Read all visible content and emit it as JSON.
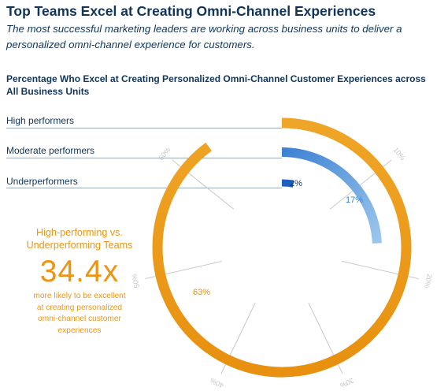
{
  "header": {
    "title": "Top Teams Excel at Creating Omni-Channel Experiences",
    "subtitle": "The most successful marketing leaders are working across business units to deliver a personalized omni-channel experience for customers."
  },
  "callout": {
    "heading_line1": "High-performing vs.",
    "heading_line2": "Underperforming Teams",
    "value": "34.4x",
    "body_line1": "more likely to be excellent",
    "body_line2": "at creating personalized",
    "body_line3": "omni-channel customer",
    "body_line4": "experiences"
  },
  "chart_data": {
    "type": "radial-bar",
    "title": "Percentage Who Excel at Creating Personalized Omni-Channel Customer Experiences across All Business Units",
    "categories": [
      "High performers",
      "Moderate performers",
      "Underperformers"
    ],
    "values": [
      63,
      17,
      2
    ],
    "value_labels": [
      "63%",
      "17%",
      "2%"
    ],
    "unit": "%",
    "axis": {
      "min": 0,
      "max": 70,
      "ticks": [
        10,
        20,
        30,
        40,
        50,
        60
      ],
      "tick_labels": [
        "10%",
        "20%",
        "30%",
        "40%",
        "50%",
        "60%"
      ]
    },
    "colors": {
      "High performers": "#efa527",
      "Moderate performers": "#4a90d9",
      "Underperformers": "#1f5fbf",
      "text": "#10345a",
      "callout": "#ef9412",
      "tick": "#c9c9c9"
    }
  }
}
